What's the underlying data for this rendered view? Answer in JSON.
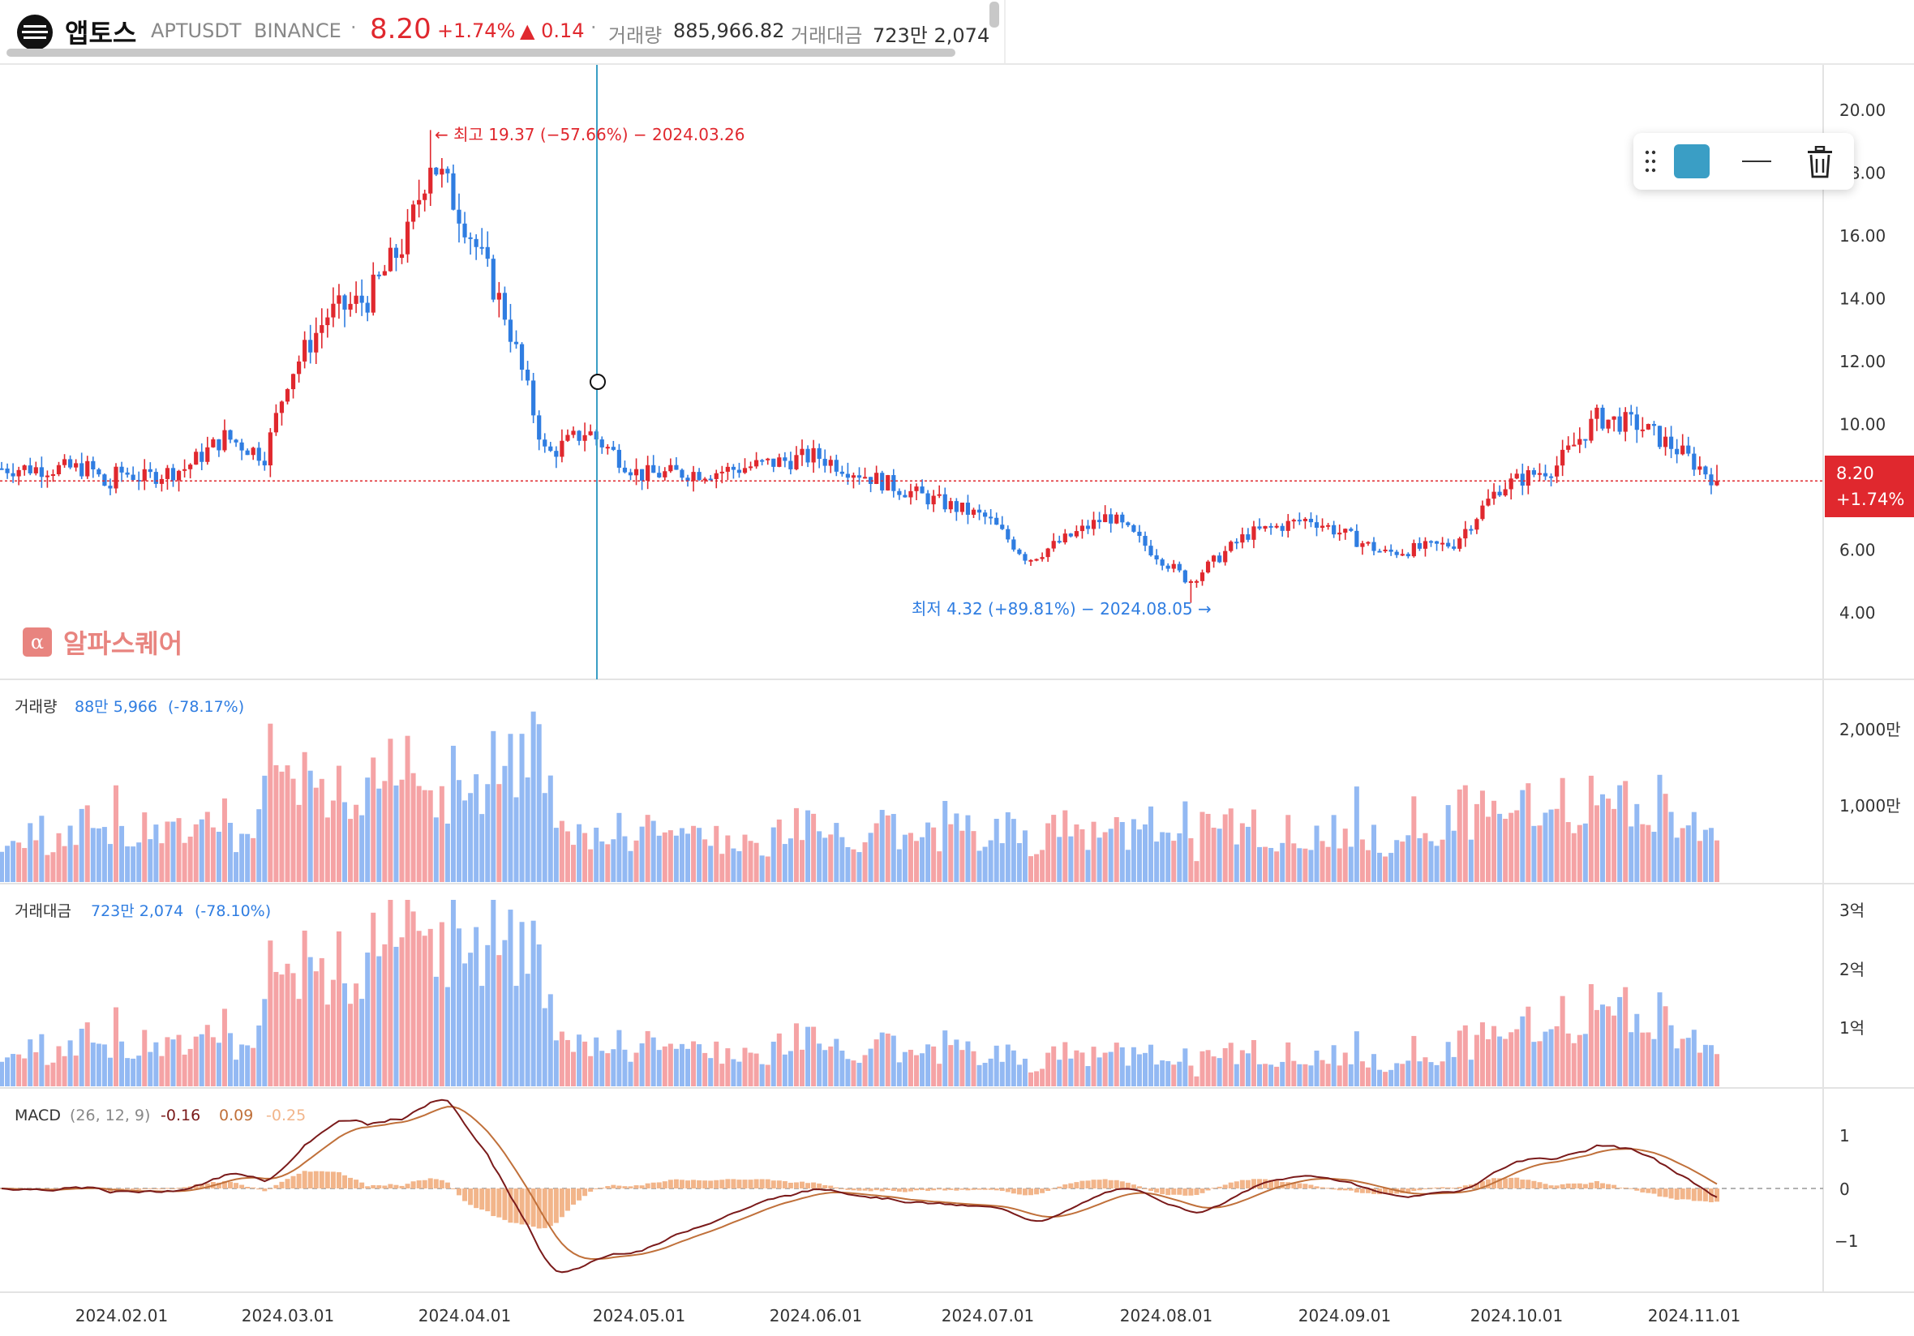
{
  "header": {
    "coin_name": "앱토스",
    "symbol": "APTUSDT",
    "exchange": "BINANCE",
    "separator": "·",
    "price": "8.20",
    "change_pct": "+1.74%",
    "change_abs": "▲ 0.14",
    "volume_label": "거래량",
    "volume_value": "885,966.82",
    "amount_label": "거래대금",
    "amount_value": "723만 2,074",
    "logo_icon": "aptos-logo-icon"
  },
  "colors": {
    "up": "#e0282e",
    "down": "#2f7de1",
    "vol_up": "#f5a3a5",
    "vol_down": "#93b9f3",
    "macd_line": "#7a1a1a",
    "signal_line": "#c0703a",
    "hist": "#f2b58a",
    "crosshair": "#3a9ec5"
  },
  "toolbar": {
    "grip_icon": "drag-handle-icon",
    "color_value": "#3a9ec5",
    "line_style_icon": "line-style-icon",
    "delete_icon": "trash-icon"
  },
  "watermark": {
    "text": "알파스퀘어",
    "icon": "alpha-square-logo-icon",
    "icon_glyph": "α"
  },
  "price_tag": {
    "price": "8.20",
    "pct": "+1.74%"
  },
  "panels": {
    "volume": {
      "label": "거래량",
      "value": "88만 5,966",
      "pct": "(-78.17%)",
      "ticks": [
        "2,000만",
        "1,000만"
      ]
    },
    "amount": {
      "label": "거래대금",
      "value": "723만 2,074",
      "pct": "(-78.10%)",
      "ticks": [
        "3억",
        "2억",
        "1억"
      ]
    },
    "macd": {
      "label": "MACD",
      "params": "(26, 12, 9)",
      "macd": "-0.16",
      "signal": "0.09",
      "hist": "-0.25",
      "ticks": [
        "1",
        "0",
        "−1"
      ]
    }
  },
  "chart_data": {
    "type": "candlestick",
    "price_axis_ticks": [
      "20.00",
      "18.00",
      "16.00",
      "14.00",
      "12.00",
      "10.00",
      "8.00",
      "6.00",
      "4.00"
    ],
    "price_axis_values": [
      20,
      18,
      16,
      14,
      12,
      10,
      8,
      6,
      4
    ],
    "x_tick_labels": [
      "2024.02.01",
      "2024.03.01",
      "2024.04.01",
      "2024.05.01",
      "2024.06.01",
      "2024.07.01",
      "2024.08.01",
      "2024.09.01",
      "2024.10.01",
      "2024.11.01"
    ],
    "high_annotation": "← 최고 19.37 (−57.66%) − 2024.03.26",
    "low_annotation": "최저 4.32 (+89.81%) − 2024.08.05 →",
    "high_value": 19.37,
    "low_value": 4.32,
    "last_price": 8.2,
    "crosshair_date": "2024.04.23",
    "close_series": [
      {
        "date": "2024.01.08",
        "close": 8.6
      },
      {
        "date": "2024.01.15",
        "close": 8.3
      },
      {
        "date": "2024.01.22",
        "close": 7.9
      },
      {
        "date": "2024.01.29",
        "close": 8.5
      },
      {
        "date": "2024.02.05",
        "close": 8.3
      },
      {
        "date": "2024.02.12",
        "close": 8.6
      },
      {
        "date": "2024.02.19",
        "close": 9.6
      },
      {
        "date": "2024.02.26",
        "close": 9.0
      },
      {
        "date": "2024.03.01",
        "close": 11.5
      },
      {
        "date": "2024.03.08",
        "close": 13.5
      },
      {
        "date": "2024.03.15",
        "close": 14.0
      },
      {
        "date": "2024.03.22",
        "close": 16.0
      },
      {
        "date": "2024.03.26",
        "close": 18.5
      },
      {
        "date": "2024.04.01",
        "close": 16.5
      },
      {
        "date": "2024.04.08",
        "close": 13.5
      },
      {
        "date": "2024.04.15",
        "close": 9.0
      },
      {
        "date": "2024.04.22",
        "close": 9.8
      },
      {
        "date": "2024.05.01",
        "close": 8.4
      },
      {
        "date": "2024.05.15",
        "close": 8.5
      },
      {
        "date": "2024.06.01",
        "close": 9.0
      },
      {
        "date": "2024.06.15",
        "close": 8.0
      },
      {
        "date": "2024.07.01",
        "close": 7.0
      },
      {
        "date": "2024.07.08",
        "close": 5.7
      },
      {
        "date": "2024.07.22",
        "close": 7.1
      },
      {
        "date": "2024.08.05",
        "close": 5.0
      },
      {
        "date": "2024.08.15",
        "close": 6.5
      },
      {
        "date": "2024.08.26",
        "close": 7.0
      },
      {
        "date": "2024.09.08",
        "close": 5.9
      },
      {
        "date": "2024.09.20",
        "close": 6.2
      },
      {
        "date": "2024.09.28",
        "close": 8.0
      },
      {
        "date": "2024.10.08",
        "close": 8.7
      },
      {
        "date": "2024.10.15",
        "close": 10.2
      },
      {
        "date": "2024.10.22",
        "close": 10.0
      },
      {
        "date": "2024.10.29",
        "close": 9.2
      },
      {
        "date": "2024.11.05",
        "close": 8.2
      }
    ],
    "macd_ylim": [
      -1.5,
      1.5
    ]
  }
}
